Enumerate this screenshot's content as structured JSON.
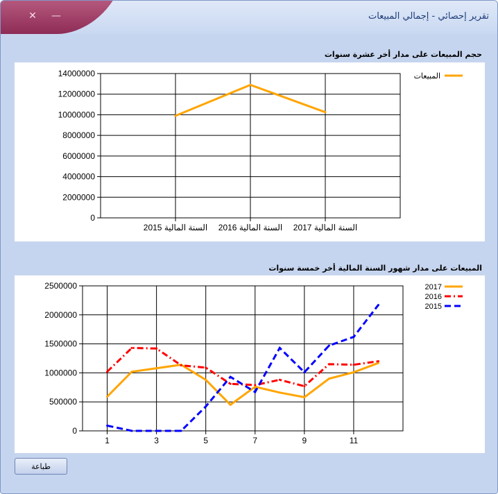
{
  "window": {
    "title": "تقرير إحصائي - إجمالي المبيعات",
    "close_glyph": "✕",
    "minimize_glyph": "—"
  },
  "print_button": {
    "label": "طباعة"
  },
  "chart_data": [
    {
      "type": "line",
      "title": "حجم المبيعات على مدار أخر عشرة سنوات",
      "categories": [
        "السنة  المالية 2015",
        "السنة  المالية 2016",
        "السنة  المالية 2017"
      ],
      "series": [
        {
          "name": "المبيعات",
          "values": [
            9900000,
            12900000,
            10250000
          ],
          "color": "#ffa500",
          "dash": "solid"
        }
      ],
      "ylim": [
        0,
        14000000
      ],
      "yticks": [
        0,
        2000000,
        4000000,
        6000000,
        8000000,
        10000000,
        12000000,
        14000000
      ],
      "xlabel": "",
      "ylabel": "",
      "grid": true,
      "legend": "top-right"
    },
    {
      "type": "line",
      "title": "المبيعات على مدار شهور السنة المالية أخر خمسة سنوات",
      "x": [
        1,
        2,
        3,
        4,
        5,
        6,
        7,
        8,
        9,
        10,
        11,
        12
      ],
      "xticks": [
        1,
        3,
        5,
        7,
        9,
        11
      ],
      "series": [
        {
          "name": "2017",
          "color": "#ffa500",
          "dash": "solid",
          "values": [
            590000,
            1020000,
            1080000,
            1140000,
            880000,
            450000,
            760000,
            660000,
            580000,
            900000,
            1010000,
            1170000
          ]
        },
        {
          "name": "2016",
          "color": "#ff0000",
          "dash": "dashdot",
          "values": [
            1020000,
            1430000,
            1420000,
            1130000,
            1090000,
            810000,
            790000,
            880000,
            770000,
            1150000,
            1140000,
            1200000
          ]
        },
        {
          "name": "2015",
          "color": "#0000ff",
          "dash": "dash",
          "values": [
            90000,
            0,
            0,
            0,
            420000,
            930000,
            670000,
            1430000,
            1010000,
            1470000,
            1620000,
            2170000
          ]
        }
      ],
      "ylim": [
        0,
        2500000
      ],
      "yticks": [
        0,
        500000,
        1000000,
        1500000,
        2000000,
        2500000
      ],
      "xlim": [
        0,
        13
      ],
      "xlabel": "",
      "ylabel": "",
      "grid": true,
      "legend": "top-right"
    }
  ]
}
